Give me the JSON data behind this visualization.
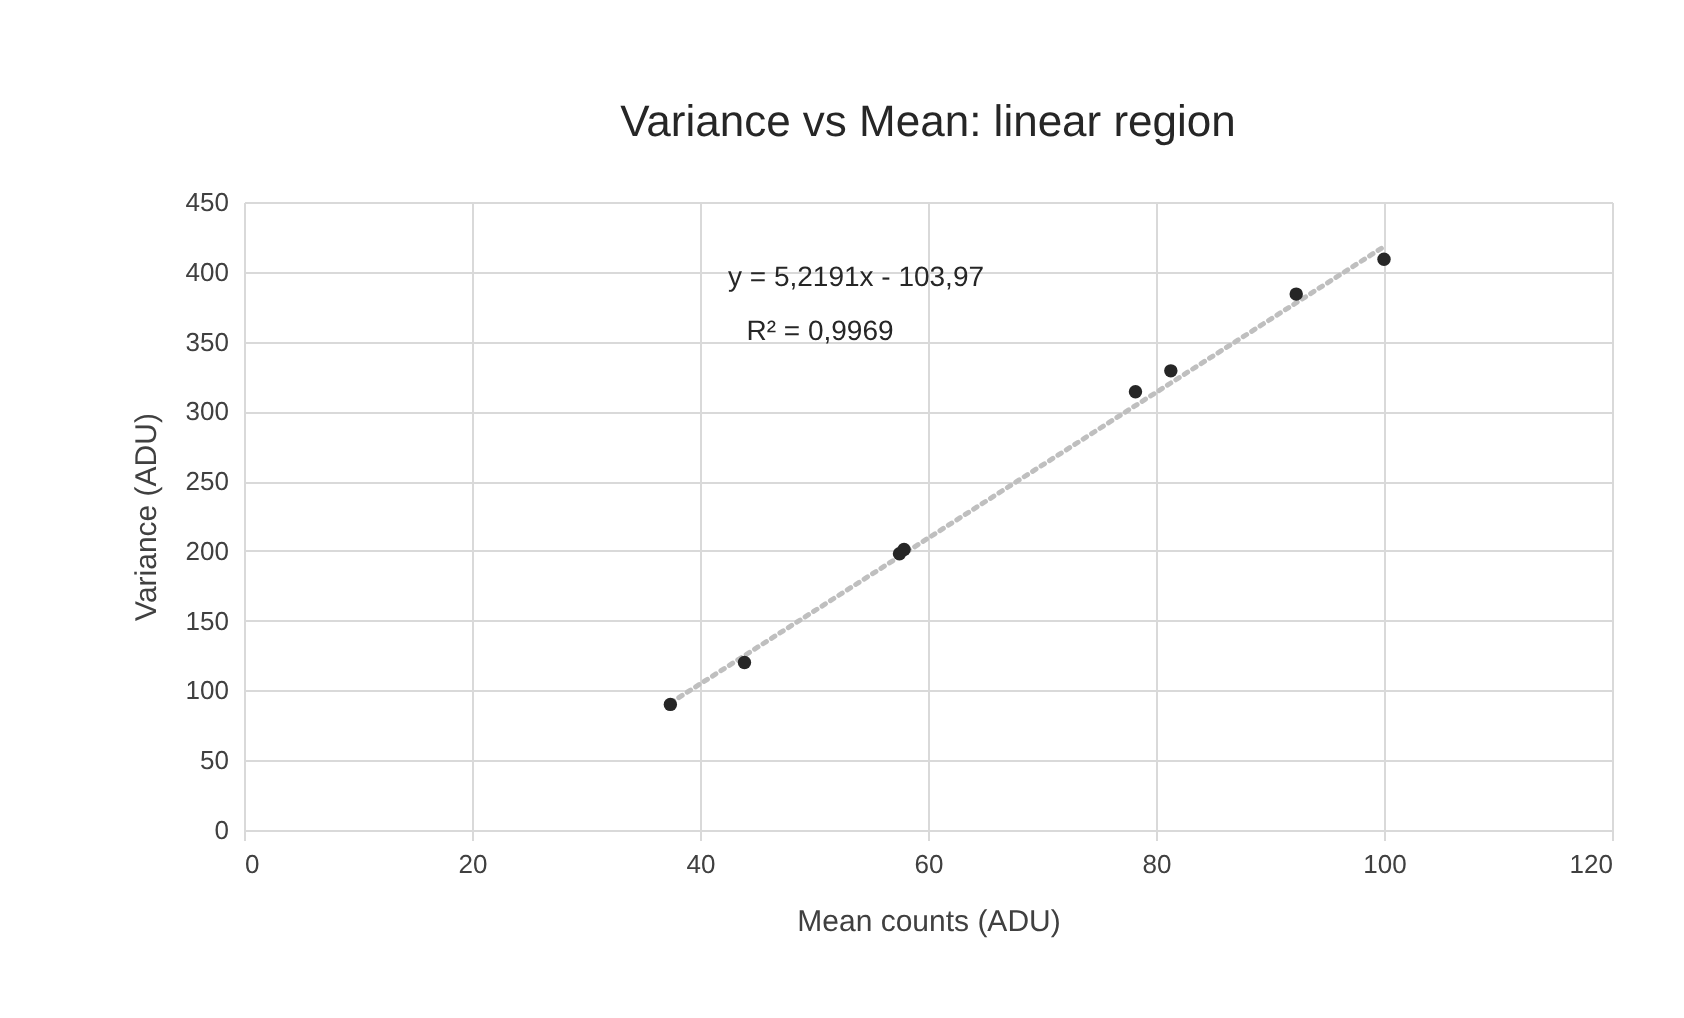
{
  "chart_data": {
    "type": "scatter",
    "title": "Variance vs Mean: linear region",
    "xlabel": "Mean counts (ADU)",
    "ylabel": "Variance (ADU)",
    "xlim": [
      0,
      120
    ],
    "xticks": [
      0,
      20,
      40,
      60,
      80,
      100,
      120
    ],
    "ylim": [
      0,
      450
    ],
    "yticks": [
      0,
      50,
      100,
      150,
      200,
      250,
      300,
      350,
      400,
      450
    ],
    "grid": true,
    "annotations": [
      "y = 5,2191x - 103,97",
      "R² = 0,9969"
    ],
    "series": [
      {
        "type": "scatter",
        "color": "#262626",
        "marker": "circle",
        "x": [
          37.4,
          43.9,
          57.5,
          57.9,
          78.2,
          81.3,
          92.3,
          100.0
        ],
        "values": [
          90,
          120,
          198,
          201,
          314,
          329,
          384,
          409
        ]
      },
      {
        "type": "line",
        "color": "#bfbfbf",
        "line_style": "dotted",
        "marker": "none",
        "x": [
          37.4,
          100.0
        ],
        "values": [
          91,
          418
        ]
      }
    ]
  }
}
